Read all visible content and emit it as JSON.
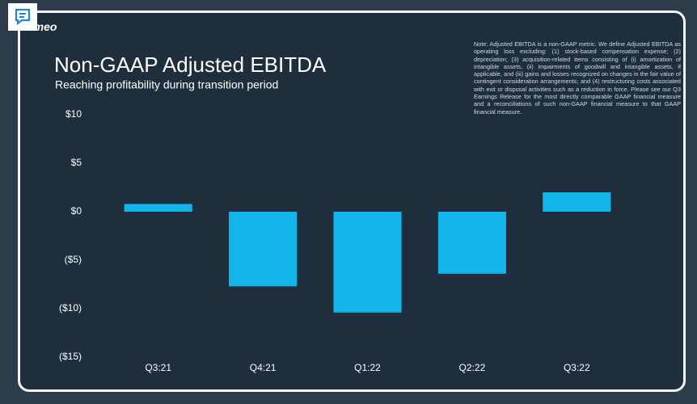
{
  "logo": "vimeo",
  "note": "Note: Adjusted EBITDA is a non-GAAP metric. We define Adjusted EBITDA as operating loss excluding: (1) stock-based compensation expense; (2) depreciation; (3) acquisition-related items consisting of (i) amortization of intangible assets, (ii) impairments of goodwill and intangible assets, if applicable, and (iii) gains and losses recognized on changes in the fair value of contingent consideration arrangements; and (4) restructuring costs associated with exit or disposal activities such as a reduction in force. Please see our Q3 Earnings Release for the most directly comparable GAAP financial measure and a reconciliations of such non-GAAP financial measure to that GAAP financial measure.",
  "chart_data": {
    "type": "bar",
    "title": "Non-GAAP Adjusted EBITDA",
    "subtitle": "Reaching profitability during transition period",
    "categories": [
      "Q3:21",
      "Q4:21",
      "Q1:22",
      "Q2:22",
      "Q3:22"
    ],
    "values": [
      0.8,
      -7.7,
      -10.4,
      -6.4,
      2.0
    ],
    "color": "#12b5ea",
    "ylim": [
      -15,
      10
    ],
    "yticks": [
      {
        "value": -15,
        "label": "($15)"
      },
      {
        "value": -10,
        "label": "($10)"
      },
      {
        "value": -5,
        "label": "($5)"
      },
      {
        "value": 0,
        "label": "$0"
      },
      {
        "value": 5,
        "label": "$5"
      },
      {
        "value": 10,
        "label": "$10"
      }
    ],
    "grid": false
  }
}
